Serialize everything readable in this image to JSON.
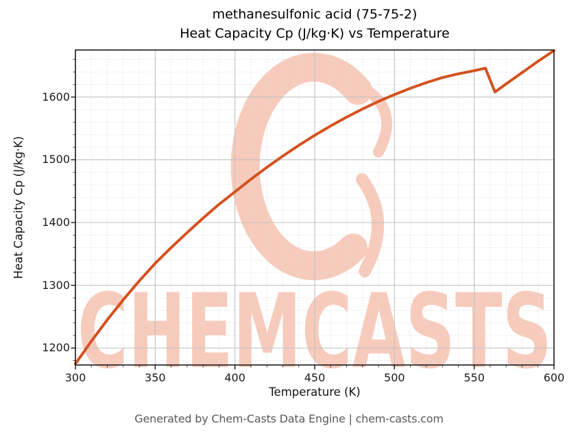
{
  "title": {
    "line1": "methanesulfonic acid (75-75-2)",
    "line2": "Heat Capacity Cp (J/kg·K) vs Temperature"
  },
  "footer": {
    "text": "Generated by Chem-Casts Data Engine | chem-casts.com"
  },
  "watermark": {
    "text": "CHEMCASTS",
    "logo": "c-swirl-logo",
    "color": "#f7cbbc"
  },
  "colors": {
    "line": "#d4511e",
    "grid_major": "#c0c0c0",
    "grid_minor": "#dcdcdc",
    "spine": "#1a1a1a",
    "tick_label": "#1a1a1a",
    "title_text": "#000000",
    "footer_text": "#585858",
    "watermark": "#f7cbbc"
  },
  "chart_data": {
    "type": "line",
    "title": "methanesulfonic acid (75-75-2)\nHeat Capacity Cp (J/kg·K) vs Temperature",
    "xlabel": "Temperature (K)",
    "ylabel": "Heat Capacity Cp (J/kg·K)",
    "xlim": [
      300,
      600
    ],
    "ylim": [
      1173,
      1675
    ],
    "grid": true,
    "legend": "none",
    "x_major_ticks": [
      300,
      350,
      400,
      450,
      500,
      550,
      600
    ],
    "x_minor_step": 10,
    "y_major_ticks": [
      1200,
      1300,
      1400,
      1500,
      1600
    ],
    "y_minor_step": 20,
    "series": [
      {
        "name": "Heat Capacity Cp (J/kg·K)",
        "color": "#d4511e",
        "line_width": 4,
        "points": [
          [
            300,
            1175
          ],
          [
            310,
            1211
          ],
          [
            320,
            1245
          ],
          [
            330,
            1277
          ],
          [
            340,
            1307
          ],
          [
            350,
            1335
          ],
          [
            360,
            1360
          ],
          [
            370,
            1384
          ],
          [
            380,
            1407
          ],
          [
            390,
            1429
          ],
          [
            400,
            1449
          ],
          [
            410,
            1469
          ],
          [
            420,
            1488
          ],
          [
            430,
            1506
          ],
          [
            440,
            1523
          ],
          [
            450,
            1539
          ],
          [
            460,
            1554
          ],
          [
            470,
            1568
          ],
          [
            480,
            1581
          ],
          [
            490,
            1593
          ],
          [
            500,
            1604
          ],
          [
            510,
            1614
          ],
          [
            520,
            1623
          ],
          [
            530,
            1631
          ],
          [
            540,
            1637
          ],
          [
            550,
            1642
          ],
          [
            557,
            1646
          ],
          [
            563,
            1608
          ],
          [
            570,
            1621
          ],
          [
            580,
            1639
          ],
          [
            590,
            1657
          ],
          [
            600,
            1674
          ]
        ]
      }
    ]
  }
}
